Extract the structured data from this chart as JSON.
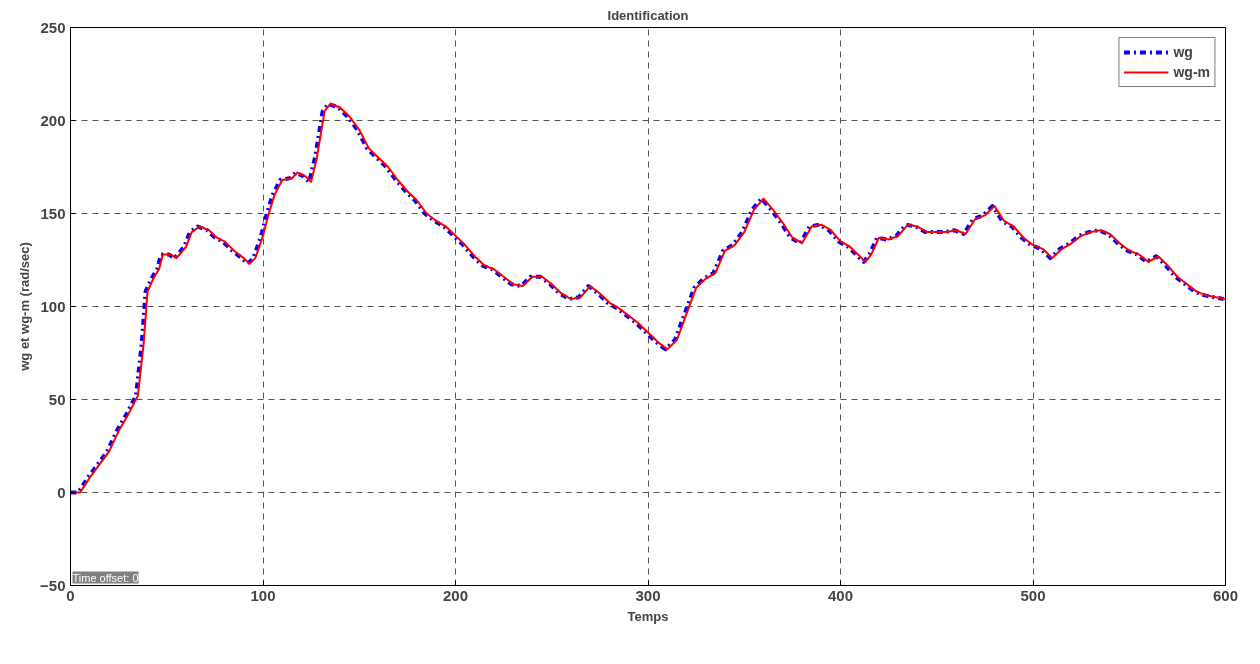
{
  "chart_data": {
    "type": "line",
    "title": "Identification",
    "xlabel": "Temps",
    "ylabel": "wg et wg-m (rad/sec)",
    "xlim": [
      0,
      600
    ],
    "ylim": [
      -50,
      250
    ],
    "xticks": [
      0,
      100,
      200,
      300,
      400,
      500,
      600
    ],
    "yticks": [
      -50,
      0,
      50,
      100,
      150,
      200,
      250
    ],
    "grid": true,
    "legend": "top right",
    "annotations": [
      "Time offset: 0"
    ],
    "series": [
      {
        "name": "wg",
        "color": "#0000ff",
        "line_style": "dashdot",
        "x": [
          0,
          4,
          9,
          14,
          19,
          24,
          29,
          34,
          37,
          39,
          42,
          45,
          47,
          51,
          54,
          59,
          62,
          66,
          71,
          75,
          79,
          84,
          89,
          92,
          95,
          99,
          102,
          105,
          109,
          114,
          117,
          121,
          124,
          127,
          131,
          134,
          139,
          144,
          149,
          154,
          159,
          164,
          169,
          174,
          179,
          184,
          189,
          194,
          199,
          204,
          209,
          214,
          219,
          224,
          229,
          234,
          239,
          244,
          249,
          254,
          259,
          264,
          269,
          274,
          279,
          284,
          289,
          294,
          299,
          304,
          309,
          314,
          319,
          324,
          329,
          334,
          339,
          344,
          349,
          354,
          359,
          364,
          369,
          374,
          379,
          384,
          389,
          394,
          399,
          404,
          409,
          412,
          415,
          419,
          424,
          429,
          434,
          439,
          444,
          449,
          454,
          459,
          464,
          469,
          474,
          479,
          484,
          489,
          494,
          499,
          504,
          509,
          514,
          519,
          524,
          529,
          534,
          539,
          544,
          549,
          554,
          559,
          564,
          569,
          574,
          579,
          584,
          589,
          594,
          599
        ],
        "values": [
          0,
          0,
          8,
          15,
          22,
          33,
          42,
          52,
          80,
          108,
          115,
          120,
          128,
          128,
          126,
          132,
          140,
          143,
          141,
          137,
          135,
          130,
          126,
          123,
          126,
          138,
          150,
          160,
          168,
          169,
          172,
          170,
          167,
          180,
          205,
          209,
          207,
          202,
          195,
          185,
          180,
          175,
          168,
          162,
          157,
          150,
          146,
          143,
          138,
          133,
          127,
          122,
          120,
          116,
          112,
          111,
          116,
          116,
          112,
          107,
          104,
          105,
          111,
          107,
          102,
          99,
          95,
          91,
          86,
          81,
          77,
          82,
          96,
          110,
          115,
          118,
          130,
          133,
          140,
          152,
          158,
          152,
          145,
          137,
          134,
          143,
          144,
          141,
          135,
          132,
          127,
          124,
          128,
          137,
          136,
          138,
          144,
          143,
          140,
          140,
          140,
          141,
          139,
          147,
          149,
          154,
          146,
          143,
          137,
          133,
          131,
          126,
          131,
          134,
          138,
          140,
          141,
          139,
          134,
          130,
          128,
          124,
          127,
          122,
          116,
          112,
          108,
          106,
          105,
          104
        ]
      },
      {
        "name": "wg-m",
        "color": "#ff0000",
        "line_style": "solid",
        "x": [
          0,
          5,
          10,
          15,
          20,
          25,
          30,
          35,
          38,
          40,
          43,
          46,
          48,
          52,
          55,
          60,
          63,
          67,
          72,
          76,
          80,
          85,
          90,
          93,
          96,
          100,
          103,
          106,
          110,
          115,
          118,
          122,
          125,
          128,
          132,
          135,
          140,
          145,
          150,
          155,
          160,
          165,
          170,
          175,
          180,
          185,
          190,
          195,
          200,
          205,
          210,
          215,
          220,
          225,
          230,
          235,
          240,
          245,
          250,
          255,
          260,
          265,
          270,
          275,
          280,
          285,
          290,
          295,
          300,
          305,
          310,
          315,
          320,
          325,
          330,
          335,
          340,
          345,
          350,
          355,
          360,
          365,
          370,
          375,
          380,
          385,
          390,
          395,
          400,
          405,
          410,
          413,
          416,
          420,
          425,
          430,
          435,
          440,
          445,
          450,
          455,
          460,
          465,
          470,
          475,
          480,
          485,
          490,
          495,
          500,
          505,
          510,
          515,
          520,
          525,
          530,
          535,
          540,
          545,
          550,
          555,
          560,
          565,
          570,
          575,
          580,
          585,
          590,
          595,
          600
        ],
        "values": [
          0,
          0,
          8,
          15,
          22,
          33,
          42,
          52,
          80,
          108,
          115,
          120,
          128,
          128,
          126,
          132,
          140,
          143,
          141,
          137,
          135,
          130,
          126,
          123,
          126,
          138,
          150,
          160,
          168,
          169,
          172,
          170,
          167,
          180,
          205,
          209,
          207,
          202,
          195,
          185,
          180,
          175,
          168,
          162,
          157,
          150,
          146,
          143,
          138,
          133,
          127,
          122,
          120,
          116,
          112,
          111,
          116,
          116,
          112,
          107,
          104,
          105,
          111,
          107,
          102,
          99,
          95,
          91,
          86,
          81,
          77,
          82,
          96,
          110,
          115,
          118,
          130,
          133,
          140,
          152,
          158,
          152,
          145,
          137,
          134,
          143,
          144,
          141,
          135,
          132,
          127,
          124,
          128,
          137,
          136,
          138,
          144,
          143,
          140,
          140,
          140,
          141,
          139,
          147,
          149,
          154,
          146,
          143,
          137,
          133,
          131,
          126,
          131,
          134,
          138,
          140,
          141,
          139,
          134,
          130,
          128,
          124,
          127,
          122,
          116,
          112,
          108,
          106,
          105,
          104
        ]
      }
    ]
  }
}
